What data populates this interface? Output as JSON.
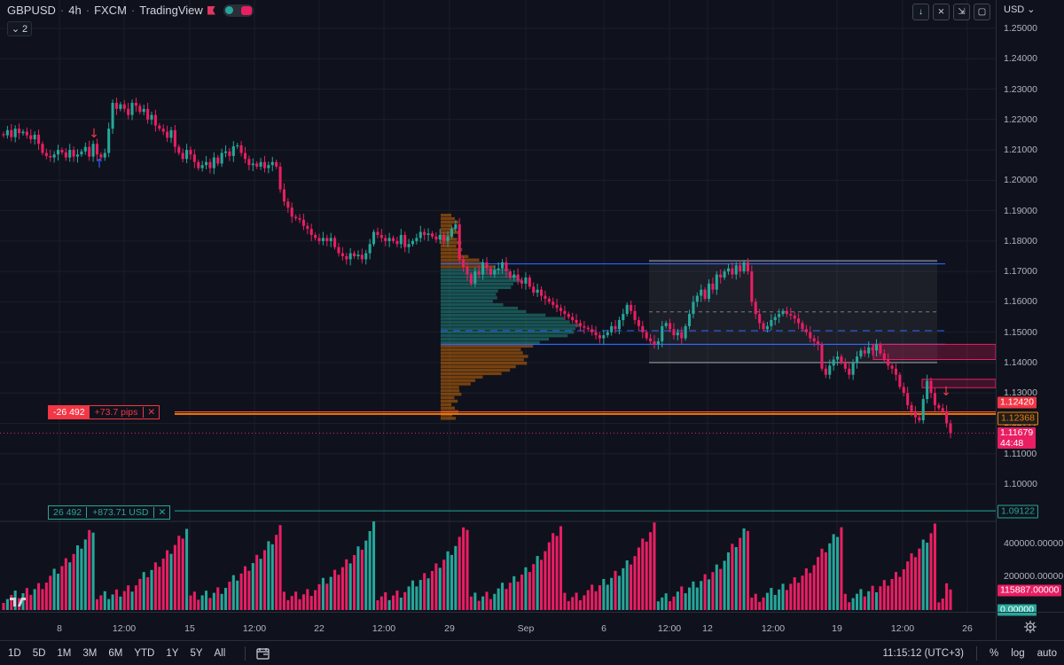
{
  "legend": {
    "symbol": "GBPUSD",
    "interval": "4h",
    "exchange": "FXCM",
    "source": "TradingView"
  },
  "collapse": {
    "count": "2"
  },
  "currency": "USD",
  "colors": {
    "up": "#26a69a",
    "down": "#e91e63",
    "background": "#0f121c",
    "grid": "#1b1f2b",
    "range_line": "#2962ff",
    "position_line": "#f57c00"
  },
  "price_axis": {
    "ticks": [
      "1.25000",
      "1.24000",
      "1.23000",
      "1.22000",
      "1.21000",
      "1.20000",
      "1.19000",
      "1.18000",
      "1.17000",
      "1.16000",
      "1.15000",
      "1.14000",
      "1.13000",
      "1.12000",
      "1.11000",
      "1.10000"
    ],
    "labels": {
      "stop": "1.12420",
      "entry": "1.12368",
      "last": "1.11679",
      "countdown": "44:48",
      "target": "1.09122"
    }
  },
  "volume_axis": {
    "ticks": [
      "400000.00000",
      "200000.00000"
    ],
    "current": "115887.00000",
    "zero": "0.00000"
  },
  "time_axis": {
    "labels": [
      "8",
      "12:00",
      "15",
      "12:00",
      "22",
      "12:00",
      "29",
      "Sep",
      "6",
      "12:00",
      "12",
      "12:00",
      "19",
      "12:00",
      "26"
    ]
  },
  "position": {
    "loss_qty": "-26 492",
    "loss_pips": "+73.7 pips",
    "profit_qty": "26 492",
    "profit_usd": "+873.71 USD"
  },
  "bottom": {
    "ranges": [
      "1D",
      "5D",
      "1M",
      "3M",
      "6M",
      "YTD",
      "1Y",
      "5Y",
      "All"
    ],
    "clock": "11:15:12 (UTC+3)",
    "percent": "%",
    "log": "log",
    "auto": "auto"
  },
  "chart_data": {
    "type": "candlestick",
    "symbol": "GBPUSD",
    "interval": "4h",
    "ylim": [
      1.0955,
      1.2555
    ],
    "start_open": 1.2152,
    "closes": [
      1.2148,
      1.2165,
      1.2142,
      1.217,
      1.2155,
      1.216,
      1.2148,
      1.2135,
      1.215,
      1.212,
      1.209,
      1.208,
      1.2075,
      1.2085,
      1.21,
      1.2092,
      1.2075,
      1.21,
      1.2078,
      1.2085,
      1.2095,
      1.211,
      1.2078,
      1.212,
      1.2085,
      1.2075,
      1.209,
      1.217,
      1.2255,
      1.2235,
      1.225,
      1.2235,
      1.2215,
      1.2255,
      1.2245,
      1.2225,
      1.2235,
      1.22,
      1.2215,
      1.218,
      1.217,
      1.216,
      1.214,
      1.2165,
      1.211,
      1.209,
      1.207,
      1.21,
      1.2085,
      1.206,
      1.204,
      1.205,
      1.206,
      1.204,
      1.2075,
      1.2055,
      1.209,
      1.2095,
      1.208,
      1.2112,
      1.2115,
      1.209,
      1.207,
      1.205,
      1.2055,
      1.2045,
      1.206,
      1.204,
      1.205,
      1.206,
      1.2045,
      1.197,
      1.193,
      1.191,
      1.188,
      1.1875,
      1.187,
      1.185,
      1.184,
      1.182,
      1.181,
      1.18,
      1.181,
      1.18,
      1.181,
      1.178,
      1.176,
      1.175,
      1.174,
      1.176,
      1.175,
      1.1755,
      1.174,
      1.176,
      1.179,
      1.183,
      1.182,
      1.181,
      1.18,
      1.181,
      1.18,
      1.179,
      1.182,
      1.178,
      1.179,
      1.18,
      1.181,
      1.183,
      1.182,
      1.1825,
      1.1815,
      1.1805,
      1.182,
      1.18,
      1.1815,
      1.184,
      1.1855,
      1.174,
      1.1715,
      1.169,
      1.166,
      1.17,
      1.169,
      1.173,
      1.171,
      1.169,
      1.1705,
      1.171,
      1.173,
      1.17,
      1.168,
      1.169,
      1.167,
      1.166,
      1.168,
      1.165,
      1.163,
      1.164,
      1.162,
      1.161,
      1.16,
      1.159,
      1.158,
      1.157,
      1.156,
      1.155,
      1.154,
      1.153,
      1.152,
      1.1515,
      1.151,
      1.15,
      1.149,
      1.148,
      1.149,
      1.15,
      1.152,
      1.151,
      1.154,
      1.156,
      1.159,
      1.157,
      1.154,
      1.152,
      1.15,
      1.148,
      1.147,
      1.146,
      1.147,
      1.152,
      1.153,
      1.151,
      1.149,
      1.15,
      1.148,
      1.152,
      1.156,
      1.16,
      1.162,
      1.164,
      1.161,
      1.166,
      1.164,
      1.169,
      1.168,
      1.17,
      1.171,
      1.169,
      1.172,
      1.17,
      1.173,
      1.17,
      1.16,
      1.156,
      1.153,
      1.151,
      1.152,
      1.154,
      1.155,
      1.156,
      1.157,
      1.156,
      1.1555,
      1.1545,
      1.153,
      1.151,
      1.15,
      1.148,
      1.147,
      1.146,
      1.138,
      1.136,
      1.139,
      1.141,
      1.142,
      1.14,
      1.138,
      1.136,
      1.14,
      1.142,
      1.144,
      1.143,
      1.145,
      1.144,
      1.146,
      1.143,
      1.141,
      1.139,
      1.138,
      1.136,
      1.132,
      1.13,
      1.126,
      1.124,
      1.122,
      1.121,
      1.128,
      1.134,
      1.13,
      1.126,
      1.125,
      1.124,
      1.12,
      1.1168
    ],
    "volume": {
      "ylim": [
        0,
        500000
      ],
      "current": 115887
    }
  }
}
